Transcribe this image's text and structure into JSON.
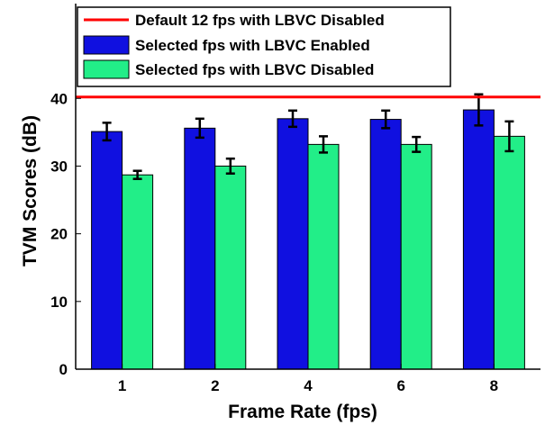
{
  "chart_data": {
    "type": "bar",
    "title": "",
    "xlabel": "Frame Rate (fps)",
    "ylabel": "TVM Scores (dB)",
    "categories": [
      "1",
      "2",
      "4",
      "6",
      "8"
    ],
    "ylim": [
      0,
      54
    ],
    "yticks": [
      0,
      10,
      20,
      30,
      40
    ],
    "grid": false,
    "legend_position": "top",
    "series": [
      {
        "name": "Selected fps with LBVC Enabled",
        "color": "#1010e0",
        "values": [
          35.1,
          35.6,
          37.0,
          36.9,
          38.3
        ],
        "errors": [
          1.3,
          1.4,
          1.2,
          1.3,
          2.3
        ]
      },
      {
        "name": "Selected fps with LBVC Disabled",
        "color": "#22ee88",
        "values": [
          28.7,
          30.0,
          33.2,
          33.2,
          34.4
        ],
        "errors": [
          0.6,
          1.1,
          1.2,
          1.1,
          2.2
        ]
      }
    ],
    "reference_line": {
      "name": "Default 12 fps with LBVC Disabled",
      "value": 40.2,
      "color": "#ff0000"
    }
  }
}
